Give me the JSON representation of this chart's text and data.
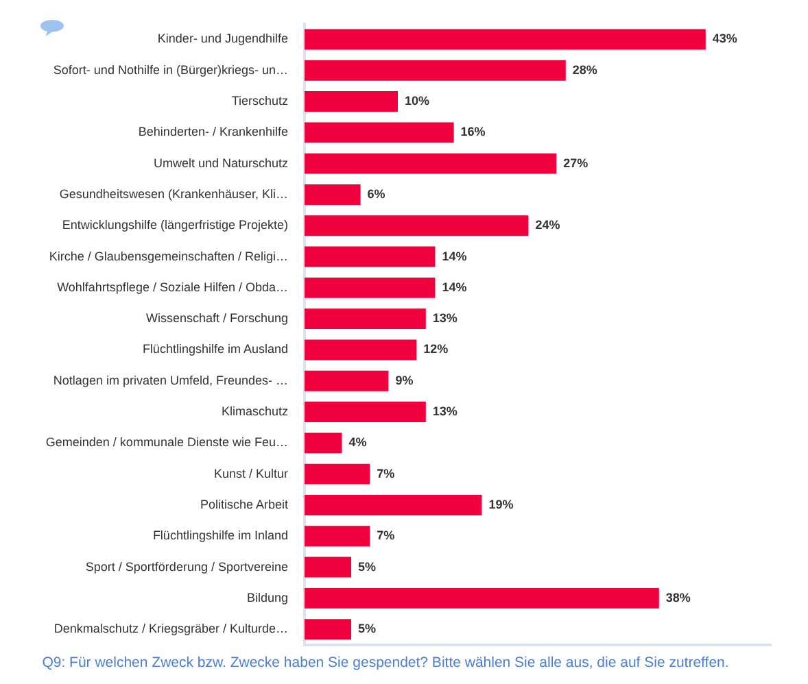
{
  "chart_data": {
    "type": "bar",
    "orientation": "horizontal",
    "title": "Q9: Für welchen Zweck bzw. Zwecke haben Sie gespendet? Bitte wählen Sie alle aus, die auf Sie zutreffen.",
    "categories": [
      "Kinder- und Jugendhilfe",
      "Sofort- und Nothilfe in (Bürger)kriegs- un…",
      "Tierschutz",
      "Behinderten- / Krankenhilfe",
      "Umwelt und Naturschutz",
      "Gesundheitswesen (Krankenhäuser, Kli…",
      "Entwicklungshilfe (längerfristige Projekte)",
      "Kirche / Glaubensgemeinschaften / Religi…",
      "Wohlfahrtspflege / Soziale Hilfen / Obda…",
      "Wissenschaft / Forschung",
      "Flüchtlingshilfe im Ausland",
      "Notlagen im privaten Umfeld, Freundes- …",
      "Klimaschutz",
      "Gemeinden / kommunale Dienste wie Feu…",
      "Kunst / Kultur",
      "Politische Arbeit",
      "Flüchtlingshilfe im Inland",
      "Sport / Sportförderung / Sportvereine",
      "Bildung",
      "Denkmalschutz / Kriegsgräber / Kulturde…"
    ],
    "values": [
      43,
      28,
      10,
      16,
      27,
      6,
      24,
      14,
      14,
      13,
      12,
      9,
      13,
      4,
      7,
      19,
      7,
      5,
      38,
      5
    ],
    "value_labels": [
      "43%",
      "28%",
      "10%",
      "16%",
      "27%",
      "6%",
      "24%",
      "14%",
      "14%",
      "13%",
      "12%",
      "9%",
      "13%",
      "4%",
      "7%",
      "19%",
      "7%",
      "5%",
      "38%",
      "5%"
    ],
    "color": "#f0003c",
    "xlim": [
      0,
      50
    ],
    "tick_labels": "y"
  }
}
